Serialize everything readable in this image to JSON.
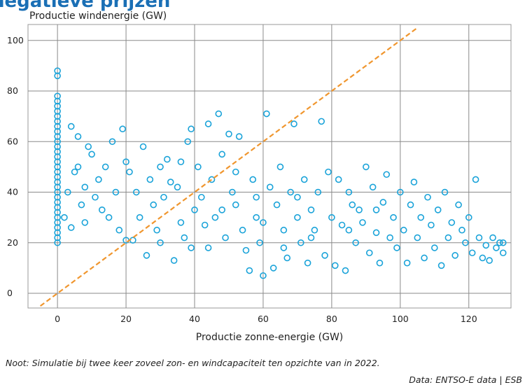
{
  "chart_data": {
    "type": "scatter",
    "title": "negatieve prijzen",
    "ylabel": "Productie windenergie (GW)",
    "xlabel": "Productie zonne-energie (GW)",
    "note": "Noot: Simulatie bij twee keer zoveel zon- en windcapaciteit ten opzichte van in 2022.",
    "source": "Data: ENTSO-E data | ESB",
    "color": "#1aa3d9",
    "grid": true,
    "xlim": [
      -8.6,
      132.3
    ],
    "ylim": [
      -5.8,
      106.3
    ],
    "xticks": [
      0,
      20,
      40,
      60,
      80,
      100,
      120
    ],
    "yticks": [
      0,
      20,
      40,
      60,
      80,
      100
    ],
    "reference_line": {
      "x": [
        -5,
        105
      ],
      "y": [
        -5,
        105
      ],
      "color": "#f0962e"
    },
    "x": [
      0,
      0,
      0,
      0,
      0,
      0,
      0,
      0,
      0,
      0,
      0,
      0,
      0,
      0,
      0,
      0,
      0,
      0,
      0,
      0,
      0,
      0,
      0,
      0,
      0,
      0,
      0,
      0,
      0,
      0,
      0,
      0,
      2,
      3,
      4,
      5,
      6,
      7,
      8,
      10,
      12,
      14,
      15,
      17,
      19,
      20,
      4,
      9,
      11,
      13,
      16,
      18,
      20,
      6,
      8,
      22,
      23,
      24,
      25,
      27,
      28,
      29,
      30,
      31,
      34,
      35,
      36,
      38,
      39,
      40,
      26,
      32,
      37,
      21,
      33,
      39,
      36,
      30,
      41,
      42,
      43,
      44,
      45,
      46,
      47,
      48,
      49,
      50,
      51,
      52,
      53,
      54,
      55,
      56,
      57,
      58,
      59,
      60,
      61,
      62,
      44,
      48,
      52,
      58,
      60,
      63,
      64,
      65,
      66,
      67,
      68,
      69,
      70,
      71,
      72,
      73,
      74,
      75,
      76,
      77,
      78,
      79,
      80,
      70,
      66,
      74,
      81,
      82,
      83,
      84,
      85,
      86,
      87,
      88,
      89,
      90,
      91,
      92,
      93,
      94,
      95,
      96,
      97,
      98,
      99,
      100,
      85,
      93,
      101,
      102,
      103,
      104,
      105,
      106,
      107,
      108,
      109,
      110,
      111,
      112,
      113,
      114,
      115,
      116,
      117,
      118,
      119,
      120,
      121,
      122,
      123,
      124,
      125,
      126,
      127,
      128,
      129,
      130,
      130
    ],
    "values": [
      20,
      22,
      24,
      26,
      28,
      30,
      32,
      34,
      36,
      38,
      40,
      42,
      44,
      46,
      48,
      50,
      52,
      54,
      56,
      58,
      60,
      62,
      64,
      66,
      68,
      70,
      72,
      74,
      76,
      78,
      86,
      88,
      30,
      40,
      66,
      48,
      62,
      35,
      28,
      55,
      45,
      50,
      30,
      40,
      65,
      52,
      26,
      58,
      38,
      33,
      60,
      25,
      21,
      50,
      42,
      21,
      40,
      30,
      58,
      45,
      35,
      25,
      50,
      38,
      13,
      42,
      28,
      60,
      65,
      33,
      15,
      53,
      22,
      48,
      44,
      18,
      52,
      20,
      50,
      38,
      27,
      67,
      45,
      30,
      71,
      55,
      22,
      63,
      40,
      35,
      62,
      25,
      17,
      9,
      45,
      30,
      20,
      7,
      71,
      42,
      18,
      33,
      48,
      38,
      28,
      10,
      35,
      50,
      25,
      14,
      40,
      67,
      30,
      20,
      45,
      12,
      33,
      25,
      40,
      68,
      15,
      48,
      30,
      38,
      18,
      22,
      11,
      45,
      27,
      9,
      40,
      35,
      20,
      33,
      28,
      50,
      16,
      42,
      24,
      12,
      36,
      47,
      22,
      30,
      18,
      40,
      25,
      33,
      25,
      12,
      35,
      44,
      22,
      30,
      14,
      38,
      27,
      18,
      33,
      11,
      40,
      22,
      28,
      15,
      35,
      25,
      20,
      30,
      16,
      45,
      22,
      14,
      19,
      13,
      22,
      18,
      20,
      16,
      20
    ]
  }
}
